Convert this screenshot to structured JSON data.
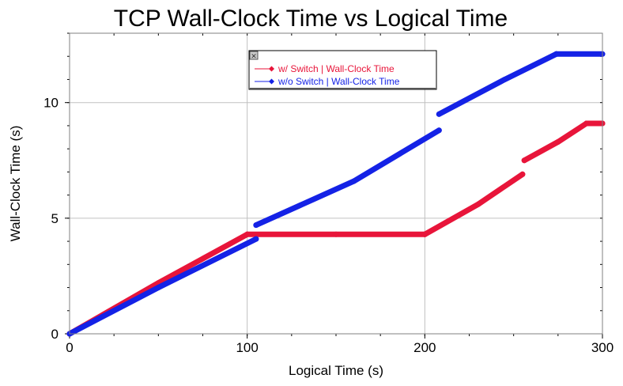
{
  "chart_data": {
    "type": "scatter",
    "title": "TCP Wall-Clock Time vs Logical Time",
    "xlabel": "Logical Time (s)",
    "ylabel": "Wall-Clock Time (s)",
    "xlim": [
      0,
      300
    ],
    "ylim": [
      0,
      13
    ],
    "x_ticks": [
      0,
      100,
      200,
      300
    ],
    "y_ticks": [
      0,
      5,
      10
    ],
    "grid": true,
    "legend_position": "top-center",
    "series": [
      {
        "name": "w/ Switch | Wall-Clock Time",
        "color": "#e8153a",
        "segments": [
          [
            [
              0,
              0
            ],
            [
              50,
              2.2
            ],
            [
              100,
              4.3
            ]
          ],
          [
            [
              100,
              4.3
            ],
            [
              150,
              4.3
            ],
            [
              200,
              4.3
            ]
          ],
          [
            [
              200,
              4.3
            ],
            [
              230,
              5.6
            ],
            [
              255,
              6.9
            ]
          ],
          [
            [
              256,
              7.5
            ],
            [
              275,
              8.3
            ],
            [
              291,
              9.1
            ]
          ],
          [
            [
              291,
              9.1
            ],
            [
              300,
              9.1
            ]
          ]
        ]
      },
      {
        "name": "w/o Switch | Wall-Clock Time",
        "color": "#1422e6",
        "segments": [
          [
            [
              0,
              0
            ],
            [
              50,
              2.0
            ],
            [
              105,
              4.1
            ]
          ],
          [
            [
              105,
              4.7
            ],
            [
              160,
              6.6
            ],
            [
              208,
              8.8
            ]
          ],
          [
            [
              208,
              9.5
            ],
            [
              245,
              11.0
            ],
            [
              274,
              12.1
            ]
          ],
          [
            [
              274,
              12.1
            ],
            [
              300,
              12.1
            ]
          ]
        ]
      }
    ]
  },
  "legend": {
    "close_symbol": "✕"
  }
}
